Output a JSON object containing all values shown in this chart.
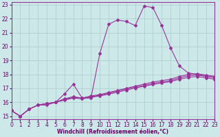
{
  "background_color": "#cce8e8",
  "grid_color": "#aacccc",
  "line_color": "#993399",
  "xlabel": "Windchill (Refroidissement éolien,°C)",
  "xlim": [
    0,
    23
  ],
  "ylim": [
    14.8,
    23.2
  ],
  "xticks": [
    0,
    1,
    2,
    3,
    4,
    5,
    6,
    7,
    8,
    9,
    10,
    11,
    12,
    13,
    14,
    15,
    16,
    17,
    18,
    19,
    20,
    21,
    22,
    23
  ],
  "yticks": [
    15,
    16,
    17,
    18,
    19,
    20,
    21,
    22,
    23
  ],
  "series": [
    {
      "x": [
        0,
        1,
        2,
        3,
        4,
        5,
        6,
        7,
        8,
        9,
        10,
        11,
        12,
        13,
        14,
        15,
        16,
        17,
        18,
        19,
        20,
        21,
        22,
        23
      ],
      "y": [
        15.4,
        15.0,
        15.5,
        15.8,
        15.8,
        16.0,
        16.6,
        17.3,
        16.3,
        16.3,
        19.5,
        21.6,
        21.9,
        21.8,
        21.5,
        22.9,
        22.8,
        21.5,
        19.9,
        18.6,
        18.1,
        18.0,
        17.9,
        17.85
      ]
    },
    {
      "x": [
        0,
        1,
        2,
        3,
        4,
        5,
        6,
        7,
        8,
        9,
        10,
        11,
        12,
        13,
        14,
        15,
        16,
        17,
        18,
        19,
        20,
        21,
        22,
        23
      ],
      "y": [
        15.4,
        15.0,
        15.5,
        15.8,
        15.9,
        16.0,
        16.25,
        16.4,
        16.3,
        16.45,
        16.55,
        16.7,
        16.85,
        17.0,
        17.15,
        17.3,
        17.45,
        17.55,
        17.65,
        17.85,
        18.0,
        18.05,
        17.95,
        17.85
      ]
    },
    {
      "x": [
        0,
        1,
        2,
        3,
        4,
        5,
        6,
        7,
        8,
        9,
        10,
        11,
        12,
        13,
        14,
        15,
        16,
        17,
        18,
        19,
        20,
        21,
        22,
        23
      ],
      "y": [
        15.4,
        15.0,
        15.5,
        15.8,
        15.9,
        16.0,
        16.2,
        16.35,
        16.3,
        16.4,
        16.5,
        16.65,
        16.8,
        16.95,
        17.1,
        17.2,
        17.35,
        17.45,
        17.55,
        17.75,
        17.9,
        17.95,
        17.85,
        17.75
      ]
    },
    {
      "x": [
        0,
        1,
        2,
        3,
        4,
        5,
        6,
        7,
        8,
        9,
        10,
        11,
        12,
        13,
        14,
        15,
        16,
        17,
        18,
        19,
        20,
        21,
        22,
        23
      ],
      "y": [
        15.4,
        15.0,
        15.5,
        15.8,
        15.9,
        16.0,
        16.15,
        16.3,
        16.25,
        16.35,
        16.45,
        16.58,
        16.72,
        16.87,
        17.02,
        17.15,
        17.28,
        17.38,
        17.48,
        17.65,
        17.78,
        17.85,
        17.75,
        17.65
      ]
    }
  ],
  "marker": "D",
  "markersize": 2.0,
  "linewidth": 0.8,
  "tick_fontsize": 5.5,
  "xlabel_fontsize": 5.5
}
